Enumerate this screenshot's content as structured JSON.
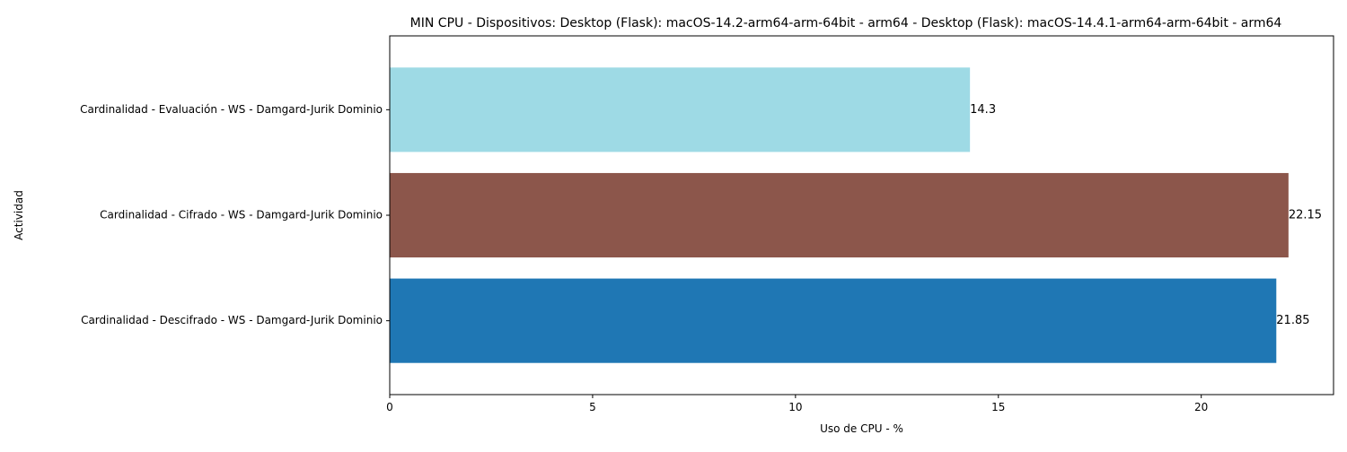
{
  "chart_data": {
    "type": "bar",
    "orientation": "horizontal",
    "title": "MIN CPU - Dispositivos: Desktop (Flask): macOS-14.2-arm64-arm-64bit - arm64 - Desktop (Flask): macOS-14.4.1-arm64-arm-64bit - arm64",
    "xlabel": "Uso de CPU - %",
    "ylabel": "Actividad",
    "categories": [
      "Cardinalidad - Descifrado - WS - Damgard-Jurik Dominio",
      "Cardinalidad - Cifrado - WS - Damgard-Jurik Dominio",
      "Cardinalidad - Evaluación - WS - Damgard-Jurik Dominio"
    ],
    "values": [
      21.85,
      22.15,
      14.3
    ],
    "value_labels": [
      "21.85",
      "22.15",
      "14.3"
    ],
    "colors": [
      "#1f77b4",
      "#8c564b",
      "#9edae5"
    ],
    "xlim": [
      0,
      23.26
    ],
    "xticks": [
      0,
      5,
      10,
      15,
      20
    ],
    "xtick_labels": [
      "0",
      "5",
      "10",
      "15",
      "20"
    ],
    "grid": false,
    "legend": "none"
  }
}
